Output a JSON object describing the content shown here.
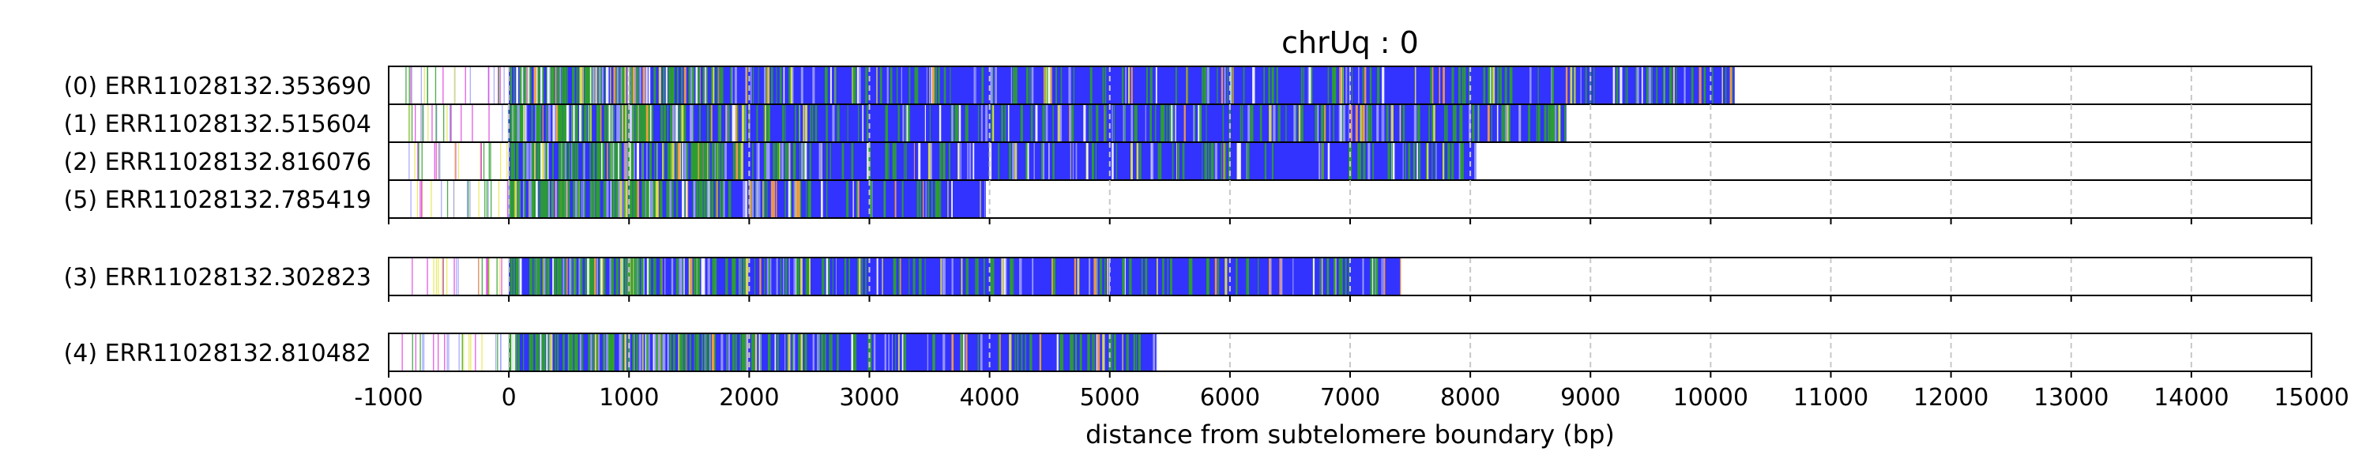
{
  "chart_data": {
    "type": "heatmap",
    "title": "chrUq : 0",
    "xlabel": "distance from subtelomere boundary (bp)",
    "ylabel": "",
    "xlim": [
      -1000,
      15000
    ],
    "xticks": [
      -1000,
      0,
      1000,
      2000,
      3000,
      4000,
      5000,
      6000,
      7000,
      8000,
      9000,
      10000,
      11000,
      12000,
      13000,
      14000,
      15000
    ],
    "xtick_labels": [
      "-1000",
      "0",
      "1000",
      "2000",
      "3000",
      "4000",
      "5000",
      "6000",
      "7000",
      "8000",
      "9000",
      "10000",
      "11000",
      "12000",
      "13000",
      "14000",
      "15000"
    ],
    "grid": "vertical dashed",
    "colors": {
      "tvr_blue": "#3333ff",
      "green": "#2ca02c",
      "yellow": "#e6e64d",
      "orange": "#ff9f40",
      "light_purple": "#9c9cff",
      "magenta": "#e040e0",
      "grid": "#c8c8c8"
    },
    "groups": [
      {
        "reads": [
          {
            "label": "(0) ERR11028132.353690",
            "start": -900,
            "end": 10200
          },
          {
            "label": "(1) ERR11028132.515604",
            "start": -900,
            "end": 8800
          },
          {
            "label": "(2) ERR11028132.816076",
            "start": -900,
            "end": 8050
          },
          {
            "label": "(5) ERR11028132.785419",
            "start": -900,
            "end": 3970
          }
        ]
      },
      {
        "reads": [
          {
            "label": "(3) ERR11028132.302823",
            "start": -900,
            "end": 7420
          }
        ]
      },
      {
        "reads": [
          {
            "label": "(4) ERR11028132.810482",
            "start": -900,
            "end": 5400
          }
        ]
      }
    ]
  }
}
